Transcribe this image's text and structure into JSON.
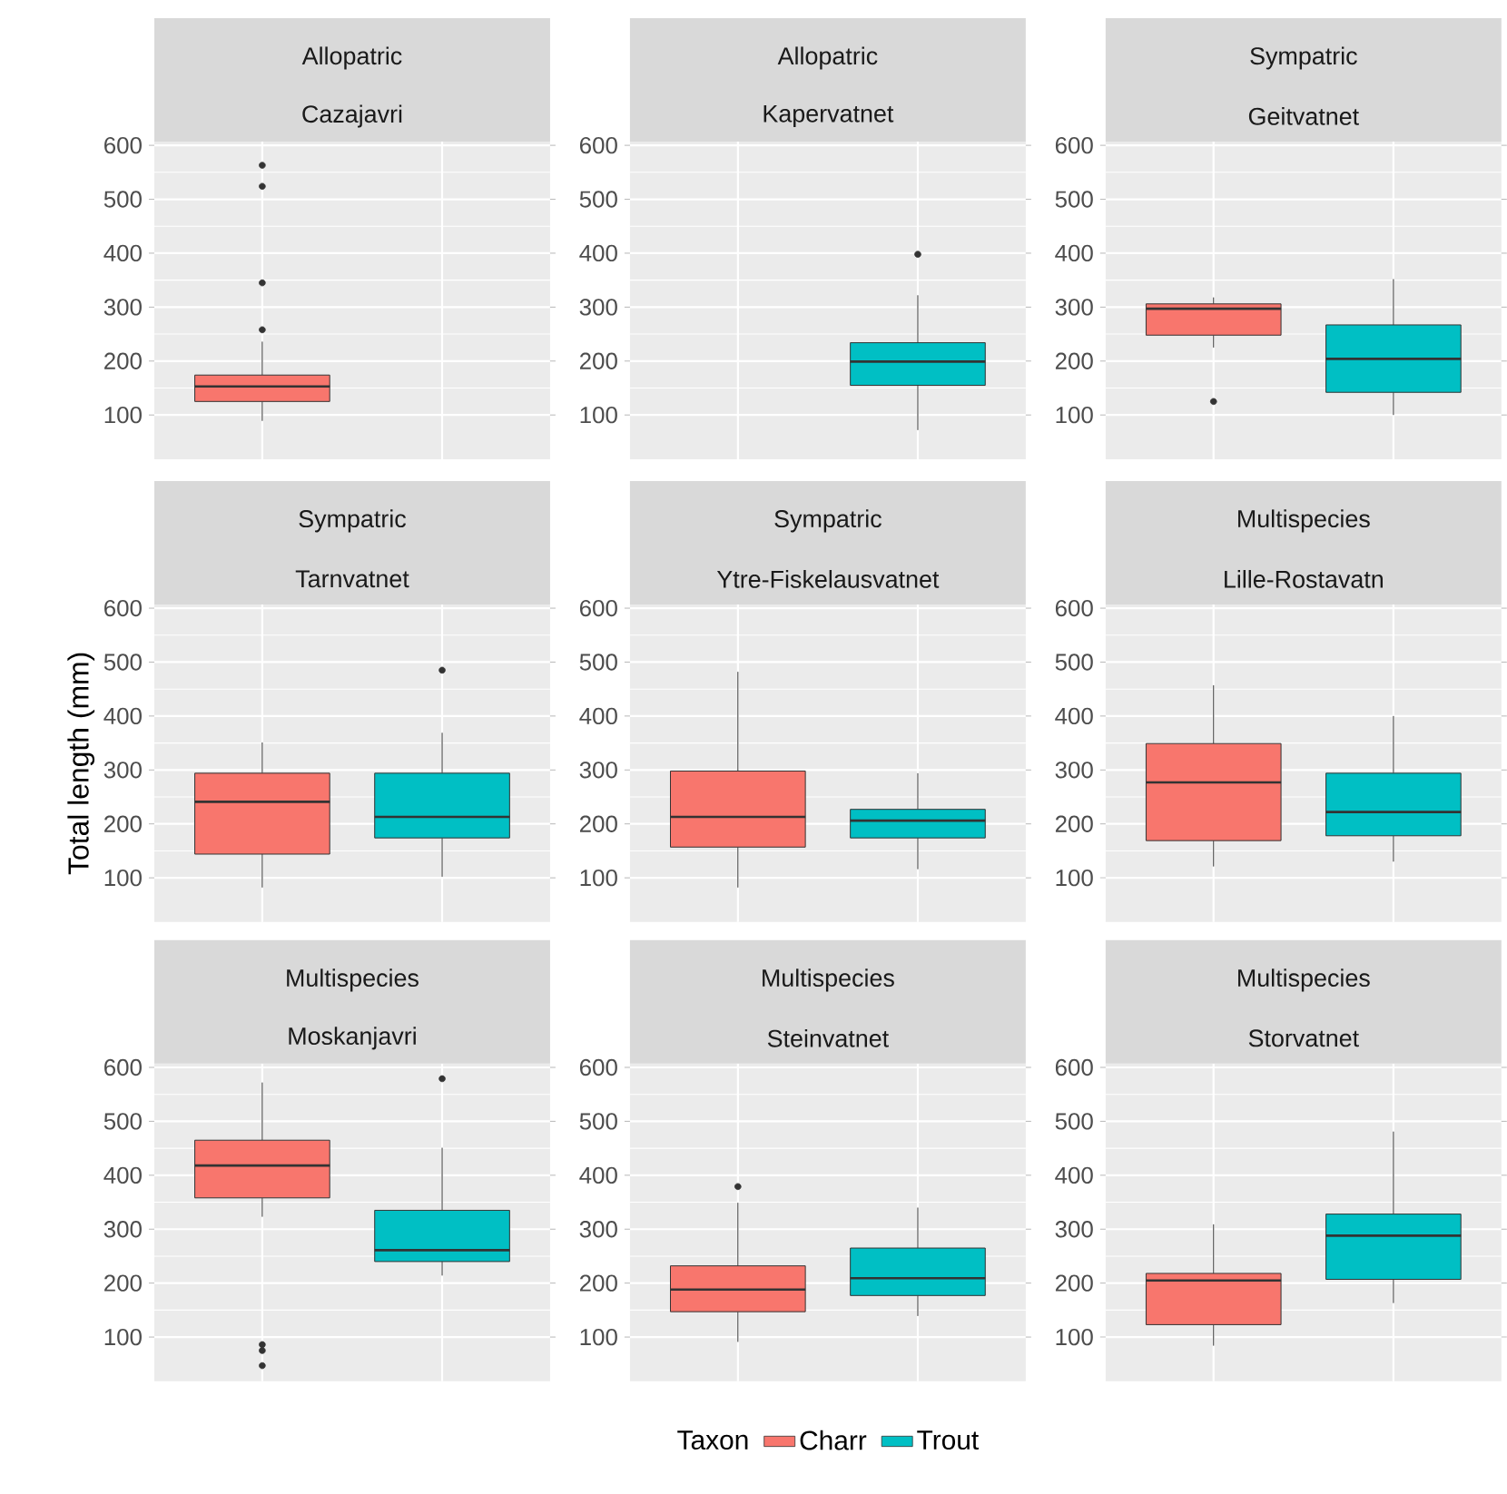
{
  "chart_data": [
    {
      "type": "box",
      "title": "Allopatric",
      "subtitle": "Cazajavri",
      "categories": [
        null,
        null
      ],
      "ylim": [
        18,
        607
      ],
      "yticks": [
        100,
        200,
        300,
        400,
        500,
        600
      ],
      "grid": true,
      "tick_labels": "y",
      "series": [
        {
          "color": "#f8766d",
          "boxes": [
            {
              "low": 89,
              "q1": 125,
              "median": 153,
              "q3": 174,
              "high": 236,
              "outliers": [
                258,
                345,
                524,
                563
              ]
            },
            null
          ]
        },
        {
          "color": "#00bfc4",
          "boxes": [
            null,
            null
          ]
        }
      ]
    },
    {
      "type": "box",
      "title": "Allopatric",
      "subtitle": "Kapervatnet",
      "categories": [
        null,
        null
      ],
      "ylim": [
        18,
        607
      ],
      "yticks": [
        100,
        200,
        300,
        400,
        500,
        600
      ],
      "grid": true,
      "series": [
        {
          "color": "#f8766d",
          "boxes": [
            null,
            null
          ]
        },
        {
          "color": "#00bfc4",
          "boxes": [
            null,
            {
              "low": 72,
              "q1": 155,
              "median": 199,
              "q3": 234,
              "high": 322,
              "outliers": [
                398
              ]
            }
          ]
        }
      ]
    },
    {
      "type": "box",
      "title": "Sympatric",
      "subtitle": "Geitvatnet",
      "categories": [
        null,
        null
      ],
      "ylim": [
        18,
        607
      ],
      "yticks": [
        100,
        200,
        300,
        400,
        500,
        600
      ],
      "grid": true,
      "series": [
        {
          "color": "#f8766d",
          "boxes": [
            {
              "low": 225,
              "q1": 248,
              "median": 297,
              "q3": 306,
              "high": 318,
              "outliers": [
                125
              ]
            },
            null
          ]
        },
        {
          "color": "#00bfc4",
          "boxes": [
            null,
            {
              "low": 100,
              "q1": 142,
              "median": 204,
              "q3": 267,
              "high": 352
            }
          ]
        }
      ]
    },
    {
      "type": "box",
      "title": "Sympatric",
      "subtitle": "Tarnvatnet",
      "ylabel": "Total length (mm)",
      "categories": [
        null,
        null
      ],
      "ylim": [
        18,
        607
      ],
      "yticks": [
        100,
        200,
        300,
        400,
        500,
        600
      ],
      "grid": true,
      "tick_labels": "y",
      "series": [
        {
          "color": "#f8766d",
          "boxes": [
            {
              "low": 82,
              "q1": 144,
              "median": 241,
              "q3": 294,
              "high": 351
            },
            null
          ]
        },
        {
          "color": "#00bfc4",
          "boxes": [
            null,
            {
              "low": 102,
              "q1": 174,
              "median": 213,
              "q3": 294,
              "high": 369,
              "outliers": [
                485
              ]
            }
          ]
        }
      ]
    },
    {
      "type": "box",
      "title": "Sympatric",
      "subtitle": "Ytre-Fiskelausvatnet",
      "categories": [
        null,
        null
      ],
      "ylim": [
        18,
        607
      ],
      "yticks": [
        100,
        200,
        300,
        400,
        500,
        600
      ],
      "grid": true,
      "series": [
        {
          "color": "#f8766d",
          "boxes": [
            {
              "low": 82,
              "q1": 157,
              "median": 213,
              "q3": 298,
              "high": 482
            },
            null
          ]
        },
        {
          "color": "#00bfc4",
          "boxes": [
            null,
            {
              "low": 116,
              "q1": 174,
              "median": 206,
              "q3": 227,
              "high": 294
            }
          ]
        }
      ]
    },
    {
      "type": "box",
      "title": "Multispecies",
      "subtitle": "Lille-Rostavatn",
      "categories": [
        null,
        null
      ],
      "ylim": [
        18,
        607
      ],
      "yticks": [
        100,
        200,
        300,
        400,
        500,
        600
      ],
      "grid": true,
      "series": [
        {
          "color": "#f8766d",
          "boxes": [
            {
              "low": 121,
              "q1": 169,
              "median": 277,
              "q3": 349,
              "high": 457
            },
            null
          ]
        },
        {
          "color": "#00bfc4",
          "boxes": [
            null,
            {
              "low": 130,
              "q1": 178,
              "median": 222,
              "q3": 294,
              "high": 400
            }
          ]
        }
      ]
    },
    {
      "type": "box",
      "title": "Multispecies",
      "subtitle": "Moskanjavri",
      "categories": [
        null,
        null
      ],
      "ylim": [
        18,
        607
      ],
      "yticks": [
        100,
        200,
        300,
        400,
        500,
        600
      ],
      "grid": true,
      "tick_labels": "y",
      "series": [
        {
          "color": "#f8766d",
          "boxes": [
            {
              "low": 323,
              "q1": 358,
              "median": 418,
              "q3": 465,
              "high": 572,
              "outliers": [
                86,
                75,
                47
              ]
            },
            null
          ]
        },
        {
          "color": "#00bfc4",
          "boxes": [
            null,
            {
              "low": 214,
              "q1": 240,
              "median": 261,
              "q3": 335,
              "high": 451,
              "outliers": [
                579
              ]
            }
          ]
        }
      ]
    },
    {
      "type": "box",
      "title": "Multispecies",
      "subtitle": "Steinvatnet",
      "categories": [
        null,
        null
      ],
      "ylim": [
        18,
        607
      ],
      "yticks": [
        100,
        200,
        300,
        400,
        500,
        600
      ],
      "grid": true,
      "legend": "bottom",
      "legend_title": "Taxon",
      "series": [
        {
          "name": "Charr",
          "color": "#f8766d",
          "boxes": [
            {
              "low": 91,
              "q1": 147,
              "median": 188,
              "q3": 232,
              "high": 349,
              "outliers": [
                379
              ]
            },
            null
          ]
        },
        {
          "name": "Trout",
          "color": "#00bfc4",
          "boxes": [
            null,
            {
              "low": 139,
              "q1": 177,
              "median": 209,
              "q3": 265,
              "high": 340
            }
          ]
        }
      ]
    },
    {
      "type": "box",
      "title": "Multispecies",
      "subtitle": "Storvatnet",
      "categories": [
        null,
        null
      ],
      "ylim": [
        18,
        607
      ],
      "yticks": [
        100,
        200,
        300,
        400,
        500,
        600
      ],
      "grid": true,
      "series": [
        {
          "color": "#f8766d",
          "boxes": [
            {
              "low": 84,
              "q1": 123,
              "median": 205,
              "q3": 218,
              "high": 309
            },
            null
          ]
        },
        {
          "color": "#00bfc4",
          "boxes": [
            null,
            {
              "low": 163,
              "q1": 207,
              "median": 288,
              "q3": 328,
              "high": 481
            }
          ]
        }
      ]
    }
  ]
}
